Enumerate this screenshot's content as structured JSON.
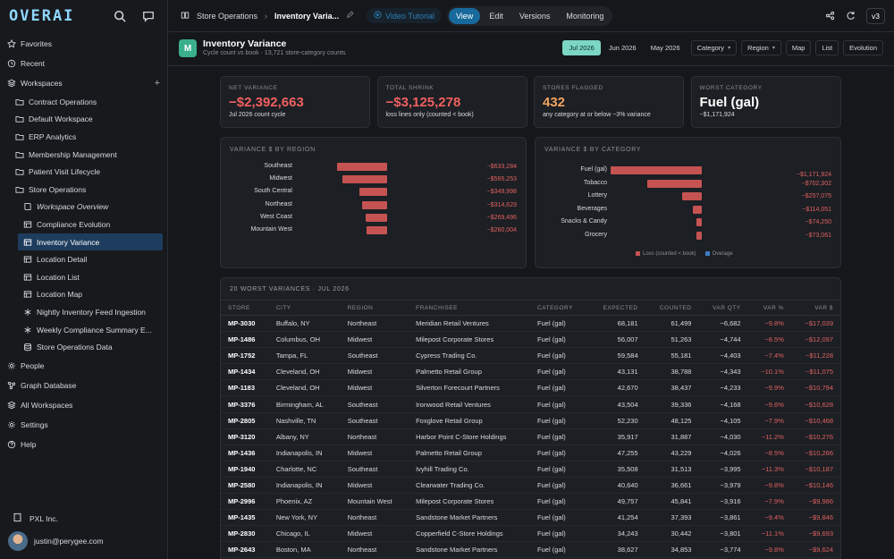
{
  "app": {
    "logo": "OVERAI",
    "version": "v3"
  },
  "sidebar": {
    "top_items": [
      {
        "label": "Favorites",
        "icon": "star-icon"
      },
      {
        "label": "Recent",
        "icon": "clock-icon"
      },
      {
        "label": "Workspaces",
        "icon": "stack-icon"
      }
    ],
    "workspaces": [
      "Contract Operations",
      "Default Workspace",
      "ERP Analytics",
      "Membership Management",
      "Patient Visit Lifecycle",
      "Store Operations"
    ],
    "store_ops_children": [
      {
        "label": "Workspace Overview",
        "icon": "book-icon",
        "italic": true
      },
      {
        "label": "Compliance Evolution",
        "icon": "table-icon"
      },
      {
        "label": "Inventory Variance",
        "icon": "table-icon",
        "active": true
      },
      {
        "label": "Location Detail",
        "icon": "table-icon"
      },
      {
        "label": "Location List",
        "icon": "table-icon"
      },
      {
        "label": "Location Map",
        "icon": "table-icon"
      },
      {
        "label": "Nightly Inventory Feed Ingestion",
        "icon": "asterisk-icon"
      },
      {
        "label": "Weekly Compliance Summary E...",
        "icon": "asterisk-icon"
      },
      {
        "label": "Store Operations Data",
        "icon": "database-icon"
      }
    ],
    "bottom_items": [
      {
        "label": "People",
        "icon": "gear-icon"
      },
      {
        "label": "Graph Database",
        "icon": "graph-icon"
      },
      {
        "label": "All Workspaces",
        "icon": "stack-icon"
      },
      {
        "label": "Settings",
        "icon": "gear-icon"
      },
      {
        "label": "Help",
        "icon": "help-icon"
      }
    ],
    "org": "PXL Inc.",
    "user": "justin@perygee.com"
  },
  "topbar": {
    "breadcrumb_parent": "Store Operations",
    "breadcrumb_current": "Inventory Varia...",
    "video": "Video Tutorial",
    "modes": [
      "View",
      "Edit",
      "Versions",
      "Monitoring"
    ],
    "active_mode": "View"
  },
  "header": {
    "icon_letter": "M",
    "title": "Inventory Variance",
    "subtitle": "Cycle count vs book · 13,721 store-category counts",
    "periods": [
      "Jul 2026",
      "Jun 2026",
      "May 2026"
    ],
    "active_period": "Jul 2026",
    "dropdowns": [
      "Category",
      "Region"
    ],
    "views": [
      "Map",
      "List",
      "Evolution"
    ]
  },
  "kpis": [
    {
      "label": "NET VARIANCE",
      "value": "−$2,392,663",
      "sub": "Jul 2026 count cycle",
      "color": "#f0605f"
    },
    {
      "label": "TOTAL SHRINK",
      "value": "−$3,125,278",
      "sub": "loss lines only (counted < book)",
      "color": "#f0605f"
    },
    {
      "label": "STORES FLAGGED",
      "value": "432",
      "sub": "any category at or below −3% variance",
      "color": "#f0a35e"
    },
    {
      "label": "WORST CATEGORY",
      "value": "Fuel (gal)",
      "sub": "−$1,171,924",
      "color": "#ffffff"
    }
  ],
  "chart_data": [
    {
      "type": "bar",
      "title": "VARIANCE $ BY REGION",
      "categories": [
        "Southeast",
        "Midwest",
        "South Central",
        "Northeast",
        "West Coast",
        "Mountain West"
      ],
      "values": [
        -633284,
        -565253,
        -349998,
        -314629,
        -269496,
        -260004
      ],
      "value_labels": [
        "−$633,284",
        "−$565,253",
        "−$349,998",
        "−$314,629",
        "−$269,496",
        "−$260,004"
      ]
    },
    {
      "type": "bar",
      "title": "VARIANCE $ BY CATEGORY",
      "categories": [
        "Fuel (gal)",
        "Tobacco",
        "Lottery",
        "Beverages",
        "Snacks & Candy",
        "Grocery"
      ],
      "values": [
        -1171924,
        -702302,
        -257075,
        -114051,
        -74250,
        -73061
      ],
      "value_labels": [
        "−$1,171,924",
        "−$702,302",
        "−$257,075",
        "−$114,051",
        "−$74,250",
        "−$73,061"
      ],
      "legend": [
        "Loss (counted < book)",
        "Overage"
      ],
      "colors": [
        "#c45352",
        "#3d7cc4"
      ]
    }
  ],
  "table": {
    "title": "20 WORST VARIANCES · JUL 2026",
    "columns": [
      "STORE",
      "CITY",
      "REGION",
      "FRANCHISEE",
      "CATEGORY",
      "EXPECTED",
      "COUNTED",
      "VAR QTY",
      "VAR %",
      "VAR $"
    ],
    "rows": [
      [
        "MP-3030",
        "Buffalo, NY",
        "Northeast",
        "Meridian Retail Ventures",
        "Fuel (gal)",
        "68,181",
        "61,499",
        "−6,682",
        "−9.8%",
        "−$17,039"
      ],
      [
        "MP-1486",
        "Columbus, OH",
        "Midwest",
        "Milepost Corporate Stores",
        "Fuel (gal)",
        "56,007",
        "51,263",
        "−4,744",
        "−8.5%",
        "−$12,097"
      ],
      [
        "MP-1752",
        "Tampa, FL",
        "Southeast",
        "Cypress Trading Co.",
        "Fuel (gal)",
        "59,584",
        "55,181",
        "−4,403",
        "−7.4%",
        "−$11,228"
      ],
      [
        "MP-1434",
        "Cleveland, OH",
        "Midwest",
        "Palmetto Retail Group",
        "Fuel (gal)",
        "43,131",
        "38,788",
        "−4,343",
        "−10.1%",
        "−$11,075"
      ],
      [
        "MP-1183",
        "Cleveland, OH",
        "Midwest",
        "Silverton Forecourt Partners",
        "Fuel (gal)",
        "42,670",
        "38,437",
        "−4,233",
        "−9.9%",
        "−$10,794"
      ],
      [
        "MP-3376",
        "Birmingham, AL",
        "Southeast",
        "Ironwood Retail Ventures",
        "Fuel (gal)",
        "43,504",
        "39,336",
        "−4,168",
        "−9.6%",
        "−$10,628"
      ],
      [
        "MP-2805",
        "Nashville, TN",
        "Southeast",
        "Foxglove Retail Group",
        "Fuel (gal)",
        "52,230",
        "48,125",
        "−4,105",
        "−7.9%",
        "−$10,468"
      ],
      [
        "MP-3120",
        "Albany, NY",
        "Northeast",
        "Harbor Point C-Store Holdings",
        "Fuel (gal)",
        "35,917",
        "31,887",
        "−4,030",
        "−11.2%",
        "−$10,276"
      ],
      [
        "MP-1436",
        "Indianapolis, IN",
        "Midwest",
        "Palmetto Retail Group",
        "Fuel (gal)",
        "47,255",
        "43,229",
        "−4,026",
        "−8.5%",
        "−$10,266"
      ],
      [
        "MP-1940",
        "Charlotte, NC",
        "Southeast",
        "Ivyhill Trading Co.",
        "Fuel (gal)",
        "35,508",
        "31,513",
        "−3,995",
        "−11.3%",
        "−$10,187"
      ],
      [
        "MP-2580",
        "Indianapolis, IN",
        "Midwest",
        "Clearwater Trading Co.",
        "Fuel (gal)",
        "40,640",
        "36,661",
        "−3,979",
        "−9.8%",
        "−$10,146"
      ],
      [
        "MP-2996",
        "Phoenix, AZ",
        "Mountain West",
        "Milepost Corporate Stores",
        "Fuel (gal)",
        "49,757",
        "45,841",
        "−3,916",
        "−7.9%",
        "−$9,986"
      ],
      [
        "MP-1435",
        "New York, NY",
        "Northeast",
        "Sandstone Market Partners",
        "Fuel (gal)",
        "41,254",
        "37,393",
        "−3,861",
        "−9.4%",
        "−$9,846"
      ],
      [
        "MP-2830",
        "Chicago, IL",
        "Midwest",
        "Copperfield C-Store Holdings",
        "Fuel (gal)",
        "34,243",
        "30,442",
        "−3,801",
        "−11.1%",
        "−$9,693"
      ],
      [
        "MP-2643",
        "Boston, MA",
        "Northeast",
        "Sandstone Market Partners",
        "Fuel (gal)",
        "38,627",
        "34,853",
        "−3,774",
        "−9.8%",
        "−$9,624"
      ]
    ]
  }
}
